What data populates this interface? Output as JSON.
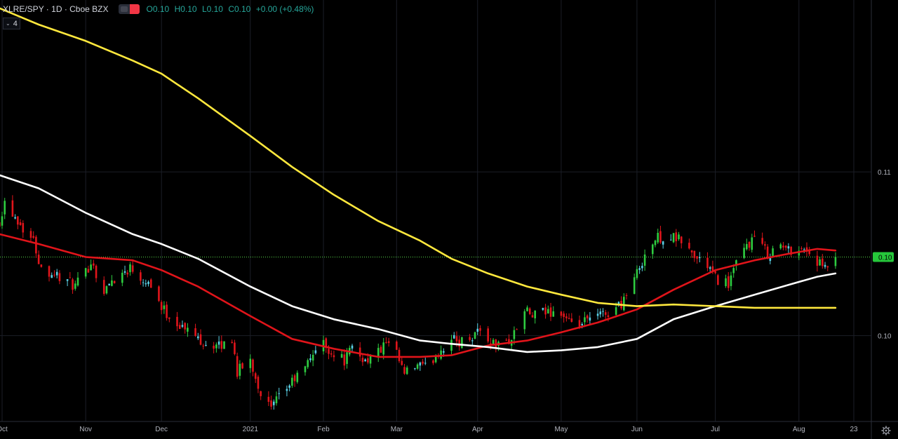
{
  "header": {
    "symbol": "XLRE/SPY · 1D · Cboe BZX",
    "open": "O0.10",
    "high": "H0.10",
    "low": "L0.10",
    "close": "C0.10",
    "change": "+0.00 (+0.48%)"
  },
  "indicator_badge": {
    "chevron": "⌄",
    "count": "4"
  },
  "icons": {
    "visibility": "eye-toggle-icon",
    "settings": "gear-icon"
  },
  "colors": {
    "up": "#2ecc40",
    "up_small": "#5ad1e6",
    "down": "#e0151b",
    "ma_short": "#e0141a",
    "ma_mid": "#ffffff",
    "ma_long": "#ffe83d",
    "price_line": "#5ad84a",
    "grid": "#1b1e27",
    "axis_text": "#b2b5be"
  },
  "chart_data": {
    "type": "candlestick",
    "title": "XLRE/SPY · 1D · Cboe BZX",
    "y_axis": {
      "ticks": [
        0.1,
        0.11
      ],
      "ylim": [
        0.0948,
        0.1205
      ],
      "last_price": 0.1048,
      "last_label": "0.10"
    },
    "x_axis": {
      "ticks": [
        {
          "label": "Oct",
          "date": "2020-10-01"
        },
        {
          "label": "Nov",
          "date": "2020-11-02"
        },
        {
          "label": "Dec",
          "date": "2020-12-01"
        },
        {
          "label": "2021",
          "date": "2021-01-04"
        },
        {
          "label": "Feb",
          "date": "2021-02-01"
        },
        {
          "label": "Mar",
          "date": "2021-03-01"
        },
        {
          "label": "Apr",
          "date": "2021-04-01"
        },
        {
          "label": "May",
          "date": "2021-05-03"
        },
        {
          "label": "Jun",
          "date": "2021-06-01"
        },
        {
          "label": "Jul",
          "date": "2021-07-01"
        },
        {
          "label": "Aug",
          "date": "2021-08-02"
        },
        {
          "label": "23",
          "date": "2021-08-23"
        }
      ]
    },
    "close_path": [
      [
        "2020-09-30",
        0.107
      ],
      [
        "2020-10-02",
        0.1082
      ],
      [
        "2020-10-06",
        0.1073
      ],
      [
        "2020-10-09",
        0.1066
      ],
      [
        "2020-10-13",
        0.1058
      ],
      [
        "2020-10-16",
        0.1041
      ],
      [
        "2020-10-21",
        0.1038
      ],
      [
        "2020-10-26",
        0.1033
      ],
      [
        "2020-10-29",
        0.103
      ],
      [
        "2020-11-02",
        0.1038
      ],
      [
        "2020-11-04",
        0.1046
      ],
      [
        "2020-11-09",
        0.1026
      ],
      [
        "2020-11-12",
        0.1034
      ],
      [
        "2020-11-16",
        0.1038
      ],
      [
        "2020-11-19",
        0.1042
      ],
      [
        "2020-11-23",
        0.1036
      ],
      [
        "2020-11-27",
        0.1032
      ],
      [
        "2020-12-01",
        0.1017
      ],
      [
        "2020-12-04",
        0.1012
      ],
      [
        "2020-12-09",
        0.1005
      ],
      [
        "2020-12-14",
        0.1
      ],
      [
        "2020-12-18",
        0.0995
      ],
      [
        "2020-12-23",
        0.0993
      ],
      [
        "2020-12-28",
        0.0998
      ],
      [
        "2020-12-30",
        0.0978
      ],
      [
        "2021-01-04",
        0.0985
      ],
      [
        "2021-01-06",
        0.0975
      ],
      [
        "2021-01-08",
        0.0965
      ],
      [
        "2021-01-12",
        0.0955
      ],
      [
        "2021-01-15",
        0.0962
      ],
      [
        "2021-01-20",
        0.0972
      ],
      [
        "2021-01-25",
        0.098
      ],
      [
        "2021-01-28",
        0.099
      ],
      [
        "2021-02-01",
        0.0995
      ],
      [
        "2021-02-04",
        0.099
      ],
      [
        "2021-02-09",
        0.0985
      ],
      [
        "2021-02-12",
        0.0992
      ],
      [
        "2021-02-17",
        0.0985
      ],
      [
        "2021-02-22",
        0.099
      ],
      [
        "2021-02-25",
        0.0995
      ],
      [
        "2021-03-01",
        0.0988
      ],
      [
        "2021-03-04",
        0.0976
      ],
      [
        "2021-03-09",
        0.0982
      ],
      [
        "2021-03-12",
        0.098
      ],
      [
        "2021-03-17",
        0.099
      ],
      [
        "2021-03-22",
        0.0998
      ],
      [
        "2021-03-25",
        0.0996
      ],
      [
        "2021-03-30",
        0.1
      ],
      [
        "2021-04-01",
        0.1004
      ],
      [
        "2021-04-06",
        0.0996
      ],
      [
        "2021-04-09",
        0.0994
      ],
      [
        "2021-04-14",
        0.0998
      ],
      [
        "2021-04-19",
        0.1015
      ],
      [
        "2021-04-22",
        0.1012
      ],
      [
        "2021-04-27",
        0.1014
      ],
      [
        "2021-04-30",
        0.1015
      ],
      [
        "2021-05-04",
        0.1012
      ],
      [
        "2021-05-07",
        0.1005
      ],
      [
        "2021-05-12",
        0.1008
      ],
      [
        "2021-05-17",
        0.1012
      ],
      [
        "2021-05-21",
        0.1014
      ],
      [
        "2021-05-26",
        0.102
      ],
      [
        "2021-05-28",
        0.1026
      ],
      [
        "2021-06-01",
        0.1038
      ],
      [
        "2021-06-04",
        0.105
      ],
      [
        "2021-06-09",
        0.106
      ],
      [
        "2021-06-14",
        0.106
      ],
      [
        "2021-06-18",
        0.1058
      ],
      [
        "2021-06-23",
        0.1048
      ],
      [
        "2021-06-28",
        0.1043
      ],
      [
        "2021-07-01",
        0.1035
      ],
      [
        "2021-07-06",
        0.1032
      ],
      [
        "2021-07-09",
        0.1043
      ],
      [
        "2021-07-13",
        0.1055
      ],
      [
        "2021-07-16",
        0.106
      ],
      [
        "2021-07-21",
        0.105
      ],
      [
        "2021-07-26",
        0.1055
      ],
      [
        "2021-07-29",
        0.1052
      ],
      [
        "2021-08-02",
        0.1054
      ],
      [
        "2021-08-05",
        0.1052
      ],
      [
        "2021-08-09",
        0.1045
      ],
      [
        "2021-08-12",
        0.104
      ],
      [
        "2021-08-16",
        0.1048
      ]
    ],
    "series": [
      {
        "key": "ma_short",
        "values": [
          [
            "2020-09-30",
            0.1062
          ],
          [
            "2020-10-15",
            0.1056
          ],
          [
            "2020-11-02",
            0.1048
          ],
          [
            "2020-11-20",
            0.1046
          ],
          [
            "2020-12-01",
            0.104
          ],
          [
            "2020-12-15",
            0.103
          ],
          [
            "2021-01-04",
            0.1012
          ],
          [
            "2021-01-20",
            0.0998
          ],
          [
            "2021-02-05",
            0.0992
          ],
          [
            "2021-02-22",
            0.0987
          ],
          [
            "2021-03-10",
            0.0987
          ],
          [
            "2021-03-22",
            0.0988
          ],
          [
            "2021-04-05",
            0.0994
          ],
          [
            "2021-04-20",
            0.0997
          ],
          [
            "2021-05-03",
            0.1002
          ],
          [
            "2021-05-17",
            0.1008
          ],
          [
            "2021-06-01",
            0.1016
          ],
          [
            "2021-06-15",
            0.1028
          ],
          [
            "2021-07-01",
            0.104
          ],
          [
            "2021-07-16",
            0.1046
          ],
          [
            "2021-07-29",
            0.105
          ],
          [
            "2021-08-09",
            0.1053
          ],
          [
            "2021-08-16",
            0.1052
          ]
        ]
      },
      {
        "key": "ma_mid",
        "values": [
          [
            "2020-09-30",
            0.1098
          ],
          [
            "2020-10-15",
            0.109
          ],
          [
            "2020-11-02",
            0.1075
          ],
          [
            "2020-11-20",
            0.1062
          ],
          [
            "2020-12-01",
            0.1056
          ],
          [
            "2020-12-15",
            0.1047
          ],
          [
            "2021-01-04",
            0.103
          ],
          [
            "2021-01-20",
            0.1018
          ],
          [
            "2021-02-05",
            0.101
          ],
          [
            "2021-02-22",
            0.1004
          ],
          [
            "2021-03-10",
            0.0997
          ],
          [
            "2021-03-22",
            0.0995
          ],
          [
            "2021-04-05",
            0.0993
          ],
          [
            "2021-04-20",
            0.099
          ],
          [
            "2021-05-03",
            0.0991
          ],
          [
            "2021-05-17",
            0.0993
          ],
          [
            "2021-06-01",
            0.0998
          ],
          [
            "2021-06-15",
            0.101
          ],
          [
            "2021-07-01",
            0.1018
          ],
          [
            "2021-07-16",
            0.1025
          ],
          [
            "2021-07-29",
            0.1031
          ],
          [
            "2021-08-09",
            0.1036
          ],
          [
            "2021-08-16",
            0.1038
          ]
        ]
      },
      {
        "key": "ma_long",
        "values": [
          [
            "2020-09-30",
            0.12
          ],
          [
            "2020-10-15",
            0.119
          ],
          [
            "2020-11-02",
            0.118
          ],
          [
            "2020-11-20",
            0.1168
          ],
          [
            "2020-12-01",
            0.116
          ],
          [
            "2020-12-15",
            0.1145
          ],
          [
            "2021-01-04",
            0.1122
          ],
          [
            "2021-01-20",
            0.1103
          ],
          [
            "2021-02-05",
            0.1086
          ],
          [
            "2021-02-22",
            0.107
          ],
          [
            "2021-03-10",
            0.1058
          ],
          [
            "2021-03-22",
            0.1047
          ],
          [
            "2021-04-05",
            0.1038
          ],
          [
            "2021-04-20",
            0.103
          ],
          [
            "2021-05-03",
            0.1025
          ],
          [
            "2021-05-17",
            0.102
          ],
          [
            "2021-06-01",
            0.1018
          ],
          [
            "2021-06-15",
            0.1019
          ],
          [
            "2021-07-01",
            0.1018
          ],
          [
            "2021-07-16",
            0.1017
          ],
          [
            "2021-07-29",
            0.1017
          ],
          [
            "2021-08-09",
            0.1017
          ],
          [
            "2021-08-16",
            0.1017
          ]
        ]
      }
    ]
  }
}
